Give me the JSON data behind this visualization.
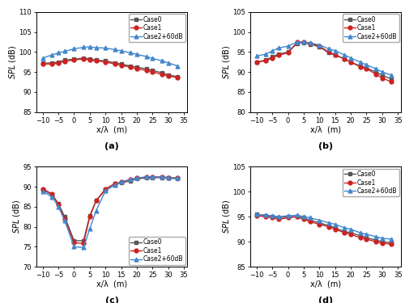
{
  "x": [
    -10,
    -7,
    -5,
    -3,
    0,
    3,
    5,
    7,
    10,
    13,
    15,
    18,
    20,
    23,
    25,
    28,
    30,
    33
  ],
  "a_case0": [
    97.2,
    97.3,
    97.5,
    98.0,
    98.2,
    98.5,
    98.3,
    98.0,
    97.8,
    97.3,
    97.0,
    96.5,
    96.2,
    95.8,
    95.4,
    94.8,
    94.3,
    93.8
  ],
  "a_case1": [
    97.0,
    97.0,
    97.2,
    97.7,
    98.0,
    98.3,
    98.0,
    97.8,
    97.5,
    97.0,
    96.7,
    96.2,
    95.8,
    95.4,
    95.0,
    94.4,
    94.0,
    93.6
  ],
  "a_case2": [
    98.5,
    99.3,
    99.8,
    100.2,
    100.8,
    101.2,
    101.3,
    101.1,
    101.0,
    100.6,
    100.3,
    99.8,
    99.4,
    98.9,
    98.4,
    97.8,
    97.3,
    96.5
  ],
  "b_case0": [
    92.5,
    93.0,
    93.8,
    94.5,
    95.0,
    97.2,
    97.4,
    97.0,
    96.3,
    94.8,
    94.2,
    93.3,
    92.5,
    91.5,
    91.0,
    90.0,
    89.2,
    88.2
  ],
  "b_case1": [
    92.5,
    92.8,
    93.5,
    94.2,
    94.8,
    97.5,
    97.5,
    97.2,
    96.5,
    95.0,
    94.3,
    93.3,
    92.5,
    91.3,
    90.8,
    89.5,
    88.5,
    87.5
  ],
  "b_case2": [
    94.0,
    94.5,
    95.3,
    96.0,
    96.5,
    97.5,
    97.5,
    97.3,
    96.8,
    95.8,
    95.3,
    94.3,
    93.5,
    92.5,
    91.8,
    90.8,
    90.0,
    89.2
  ],
  "c_case0": [
    89.2,
    88.0,
    85.8,
    82.5,
    76.5,
    76.5,
    82.8,
    86.5,
    89.2,
    90.5,
    91.0,
    91.5,
    92.0,
    92.2,
    92.3,
    92.3,
    92.2,
    92.0
  ],
  "c_case1": [
    89.5,
    88.2,
    85.5,
    82.0,
    76.0,
    75.8,
    82.5,
    86.5,
    89.5,
    90.8,
    91.2,
    91.8,
    92.2,
    92.4,
    92.4,
    92.5,
    92.3,
    92.2
  ],
  "c_case2": [
    88.8,
    87.5,
    85.0,
    81.5,
    75.0,
    74.8,
    79.5,
    84.0,
    89.0,
    90.5,
    91.3,
    91.8,
    92.2,
    92.5,
    92.5,
    92.5,
    92.3,
    92.2
  ],
  "d_case0": [
    95.5,
    95.2,
    95.0,
    94.8,
    95.0,
    95.0,
    94.8,
    94.3,
    93.8,
    93.2,
    92.8,
    92.0,
    91.8,
    91.2,
    90.8,
    90.3,
    90.0,
    89.8
  ],
  "d_case1": [
    95.2,
    95.0,
    94.8,
    94.5,
    94.8,
    95.0,
    94.5,
    94.0,
    93.5,
    93.0,
    92.5,
    91.8,
    91.5,
    90.8,
    90.5,
    90.0,
    89.7,
    89.5
  ],
  "d_case2": [
    95.5,
    95.3,
    95.2,
    95.0,
    95.2,
    95.3,
    95.0,
    94.8,
    94.3,
    93.8,
    93.5,
    92.8,
    92.5,
    91.8,
    91.5,
    91.0,
    90.7,
    90.5
  ],
  "color_case0": "#555555",
  "color_case1": "#cc2222",
  "color_case2": "#4488cc",
  "label_case0": "Case0",
  "label_case1": "Case1",
  "label_case2": "Case2+60dB",
  "xlim": [
    -12,
    36
  ],
  "xticks": [
    -10,
    -5,
    0,
    5,
    10,
    15,
    20,
    25,
    30,
    35
  ],
  "a_ylim": [
    85,
    110
  ],
  "a_yticks": [
    85,
    90,
    95,
    100,
    105,
    110
  ],
  "b_ylim": [
    80,
    105
  ],
  "b_yticks": [
    80,
    85,
    90,
    95,
    100,
    105
  ],
  "c_ylim": [
    70,
    95
  ],
  "c_yticks": [
    70,
    75,
    80,
    85,
    90,
    95
  ],
  "d_ylim": [
    85,
    105
  ],
  "d_yticks": [
    85,
    90,
    95,
    100,
    105
  ],
  "xlabel": "x/λ  (m)",
  "ylabel": "SPL (dB)",
  "subplot_labels": [
    "(a)",
    "(b)",
    "(c)",
    "(d)"
  ],
  "marker_case0": "s",
  "marker_case1": "o",
  "marker_case2": "^",
  "markersize": 3.5,
  "linewidth": 1.0
}
